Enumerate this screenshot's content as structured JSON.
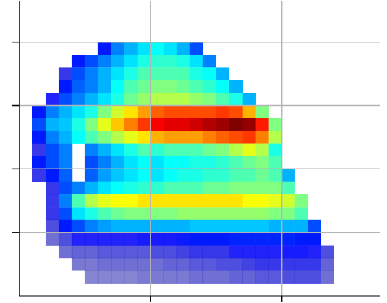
{
  "chart_data": {
    "type": "heatmap",
    "grid": true,
    "tick_labels": false,
    "xlim": [
      0,
      2.75
    ],
    "ylim": [
      0,
      4.65
    ],
    "xticks": [
      1,
      2
    ],
    "yticks": [
      1,
      2,
      3,
      4
    ],
    "color_range": [
      0,
      1
    ],
    "x_edges": [
      0.1,
      0.2,
      0.3,
      0.4,
      0.5,
      0.6,
      0.7,
      0.8,
      0.9,
      1.0,
      1.1,
      1.2,
      1.3,
      1.4,
      1.5,
      1.6,
      1.7,
      1.8,
      1.9,
      2.0,
      2.1,
      2.2,
      2.3,
      2.4
    ],
    "y_edges": [
      4.0,
      3.8,
      3.6,
      3.4,
      3.2,
      3.0,
      2.8,
      2.6,
      2.4,
      2.2,
      2.0,
      1.8,
      1.6,
      1.4,
      1.2,
      1.0,
      0.8,
      0.6,
      0.4,
      0.2
    ],
    "cells": [
      [
        null,
        null,
        null,
        null,
        null,
        0.15,
        0.25,
        0.3,
        0.35,
        0.38,
        0.35,
        0.3,
        0.2,
        null,
        null,
        null,
        null,
        null,
        null,
        null,
        null,
        null,
        null
      ],
      [
        null,
        null,
        null,
        0.15,
        0.2,
        0.25,
        0.3,
        0.35,
        0.4,
        0.42,
        0.42,
        0.4,
        0.35,
        0.25,
        null,
        null,
        null,
        null,
        null,
        null,
        null,
        null,
        null
      ],
      [
        null,
        null,
        0.1,
        0.2,
        0.25,
        0.3,
        0.35,
        0.4,
        0.45,
        0.45,
        0.45,
        0.45,
        0.4,
        0.38,
        0.3,
        null,
        null,
        null,
        null,
        null,
        null,
        null,
        null
      ],
      [
        null,
        null,
        0.15,
        0.22,
        0.25,
        0.3,
        0.38,
        0.45,
        0.48,
        0.5,
        0.5,
        0.48,
        0.45,
        0.42,
        0.38,
        0.3,
        null,
        null,
        null,
        null,
        null,
        null,
        null
      ],
      [
        null,
        0.12,
        0.2,
        0.25,
        0.3,
        0.35,
        0.4,
        0.48,
        0.52,
        0.55,
        0.55,
        0.55,
        0.52,
        0.5,
        0.45,
        0.4,
        0.3,
        null,
        null,
        null,
        null,
        null,
        null
      ],
      [
        0.15,
        0.25,
        0.3,
        0.35,
        0.4,
        0.5,
        0.58,
        0.65,
        0.72,
        0.78,
        0.8,
        0.8,
        0.8,
        0.8,
        0.82,
        0.8,
        0.7,
        0.5,
        null,
        null,
        null,
        null,
        null
      ],
      [
        0.2,
        0.3,
        0.32,
        0.4,
        0.5,
        0.6,
        0.68,
        0.75,
        0.82,
        0.88,
        0.9,
        0.9,
        0.92,
        0.95,
        0.97,
        1.0,
        0.98,
        0.85,
        0.5,
        null,
        null,
        null,
        null
      ],
      [
        0.15,
        0.25,
        0.3,
        0.38,
        0.45,
        0.5,
        0.55,
        0.6,
        0.65,
        0.7,
        0.72,
        0.72,
        0.72,
        0.75,
        0.78,
        0.8,
        0.82,
        0.75,
        0.55,
        null,
        null,
        null,
        null
      ],
      [
        0.1,
        0.2,
        0.25,
        null,
        0.25,
        0.3,
        0.35,
        0.4,
        0.45,
        0.42,
        0.45,
        0.45,
        0.45,
        0.48,
        0.5,
        0.55,
        0.6,
        0.55,
        0.4,
        null,
        null,
        null,
        null
      ],
      [
        0.15,
        0.2,
        0.25,
        null,
        0.2,
        0.25,
        0.3,
        0.35,
        0.38,
        0.35,
        0.38,
        0.38,
        0.4,
        0.4,
        0.42,
        0.45,
        0.48,
        0.5,
        0.45,
        null,
        null,
        null,
        null
      ],
      [
        0.1,
        0.15,
        0.22,
        null,
        0.22,
        0.28,
        0.32,
        0.35,
        0.38,
        0.35,
        0.38,
        0.4,
        0.4,
        0.42,
        0.42,
        0.45,
        0.45,
        0.48,
        0.45,
        0.3,
        null,
        null,
        null
      ],
      [
        null,
        0.1,
        0.2,
        0.25,
        0.3,
        0.35,
        0.38,
        0.4,
        0.42,
        0.42,
        0.45,
        0.45,
        0.45,
        0.48,
        0.48,
        0.5,
        0.5,
        0.5,
        0.5,
        0.45,
        null,
        null,
        null
      ],
      [
        null,
        0.1,
        0.25,
        0.45,
        0.55,
        0.6,
        0.62,
        0.62,
        0.65,
        0.65,
        0.65,
        0.65,
        0.65,
        0.65,
        0.65,
        0.65,
        0.62,
        0.62,
        0.6,
        0.58,
        0.5,
        null,
        null
      ],
      [
        null,
        0.1,
        0.2,
        0.35,
        0.4,
        0.45,
        0.48,
        0.5,
        0.5,
        0.5,
        0.5,
        0.52,
        0.52,
        0.52,
        0.52,
        0.52,
        0.52,
        0.52,
        0.5,
        0.5,
        0.45,
        null,
        null
      ],
      [
        null,
        0.08,
        0.15,
        0.2,
        0.25,
        0.28,
        0.3,
        0.3,
        0.3,
        0.3,
        0.3,
        0.3,
        0.32,
        0.32,
        0.32,
        0.32,
        0.32,
        0.32,
        0.3,
        0.3,
        0.3,
        0.2,
        null
      ],
      [
        null,
        0.05,
        0.08,
        0.12,
        0.12,
        0.12,
        0.12,
        0.12,
        0.13,
        0.13,
        0.13,
        0.14,
        0.15,
        0.15,
        0.15,
        0.16,
        0.16,
        0.16,
        0.16,
        0.16,
        0.15,
        0.15,
        null
      ],
      [
        null,
        null,
        0.05,
        0.06,
        0.06,
        0.07,
        0.07,
        0.07,
        0.07,
        0.08,
        0.08,
        0.09,
        0.1,
        0.1,
        0.1,
        0.12,
        0.12,
        0.12,
        0.12,
        0.13,
        0.13,
        0.12,
        0.08
      ],
      [
        null,
        null,
        null,
        0.04,
        0.04,
        0.05,
        0.05,
        0.05,
        0.05,
        0.05,
        0.06,
        0.06,
        0.07,
        0.07,
        0.08,
        0.08,
        0.09,
        0.1,
        0.1,
        0.1,
        0.1,
        0.1,
        0.06
      ],
      [
        null,
        null,
        null,
        null,
        0.03,
        0.03,
        0.03,
        0.03,
        0.04,
        0.04,
        0.04,
        0.04,
        0.05,
        0.05,
        0.05,
        0.06,
        0.06,
        0.07,
        0.07,
        0.08,
        0.08,
        0.08,
        0.05
      ]
    ]
  }
}
